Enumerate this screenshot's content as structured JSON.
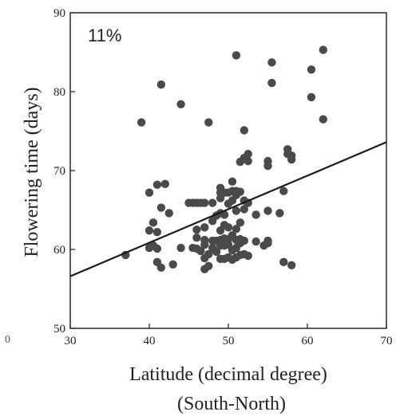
{
  "chart_data": {
    "type": "scatter",
    "annotation": "11%",
    "xlabel": "Latitude (decimal degree)",
    "xlabel2": "(South-North)",
    "ylabel": "Flowering time (days)",
    "xlim": [
      30,
      70
    ],
    "ylim": [
      50,
      90
    ],
    "xticks": [
      30,
      40,
      50,
      60,
      70
    ],
    "yticks": [
      50,
      60,
      70,
      80,
      90
    ],
    "stray_tick": "0",
    "grid": false,
    "trend_line": {
      "x": [
        30,
        70
      ],
      "y": [
        56.6,
        73.6
      ]
    },
    "points": [
      [
        37,
        59.3
      ],
      [
        39,
        76.1
      ],
      [
        40,
        60.2
      ],
      [
        40,
        62.4
      ],
      [
        40,
        67.2
      ],
      [
        40.5,
        60.5
      ],
      [
        40.5,
        63.4
      ],
      [
        41,
        58.4
      ],
      [
        41,
        60.1
      ],
      [
        41,
        62.2
      ],
      [
        41,
        68.2
      ],
      [
        41.5,
        57.7
      ],
      [
        41.5,
        65.3
      ],
      [
        41.5,
        80.9
      ],
      [
        42,
        68.3
      ],
      [
        42.5,
        64.6
      ],
      [
        43,
        58.1
      ],
      [
        44,
        60.2
      ],
      [
        44,
        78.4
      ],
      [
        45,
        65.9
      ],
      [
        45.5,
        60.2
      ],
      [
        45.5,
        65.9
      ],
      [
        46,
        60.1
      ],
      [
        46,
        61.5
      ],
      [
        46,
        62.5
      ],
      [
        46,
        65.9
      ],
      [
        46.5,
        59.8
      ],
      [
        46.5,
        65.9
      ],
      [
        47,
        57.5
      ],
      [
        47,
        58.9
      ],
      [
        47,
        60.6
      ],
      [
        47,
        61.2
      ],
      [
        47,
        62.8
      ],
      [
        47,
        65.9
      ],
      [
        47.5,
        57.9
      ],
      [
        47.5,
        59.4
      ],
      [
        47.5,
        76.1
      ],
      [
        48,
        60.2
      ],
      [
        48,
        61.1
      ],
      [
        48,
        63.6
      ],
      [
        48,
        65.9
      ],
      [
        48.5,
        59.7
      ],
      [
        48.5,
        61.1
      ],
      [
        48.5,
        64.3
      ],
      [
        49,
        58.8
      ],
      [
        49,
        60.5
      ],
      [
        49,
        61.2
      ],
      [
        49,
        62.4
      ],
      [
        49,
        64.6
      ],
      [
        49,
        66.5
      ],
      [
        49,
        67.2
      ],
      [
        49,
        67.8
      ],
      [
        49.5,
        58.8
      ],
      [
        49.5,
        60.5
      ],
      [
        49.5,
        61.1
      ],
      [
        49.5,
        61.4
      ],
      [
        49.5,
        63.1
      ],
      [
        49.5,
        64.4
      ],
      [
        49.5,
        67.2
      ],
      [
        50,
        59.0
      ],
      [
        50,
        60.6
      ],
      [
        50,
        61.3
      ],
      [
        50,
        62.8
      ],
      [
        50,
        65.8
      ],
      [
        50,
        67.2
      ],
      [
        50.5,
        58.7
      ],
      [
        50.5,
        59.9
      ],
      [
        50.5,
        61.8
      ],
      [
        50.5,
        66.2
      ],
      [
        50.5,
        67.4
      ],
      [
        50.5,
        68.6
      ],
      [
        51,
        59.0
      ],
      [
        51,
        60.2
      ],
      [
        51,
        61.2
      ],
      [
        51,
        62.6
      ],
      [
        51,
        64.9
      ],
      [
        51,
        66.9
      ],
      [
        51,
        67.4
      ],
      [
        51,
        84.6
      ],
      [
        51.5,
        59.3
      ],
      [
        51.5,
        60.8
      ],
      [
        51.5,
        61.3
      ],
      [
        51.5,
        63.4
      ],
      [
        51.5,
        67.3
      ],
      [
        51.5,
        71.1
      ],
      [
        52,
        59.4
      ],
      [
        52,
        61.1
      ],
      [
        52,
        65.1
      ],
      [
        52,
        66.2
      ],
      [
        52,
        71.6
      ],
      [
        52,
        75.1
      ],
      [
        52.5,
        59.2
      ],
      [
        52.5,
        65.9
      ],
      [
        52.5,
        71.2
      ],
      [
        52.5,
        72.1
      ],
      [
        53.5,
        61.0
      ],
      [
        53.5,
        64.4
      ],
      [
        54.5,
        60.5
      ],
      [
        55,
        60.8
      ],
      [
        55,
        61.1
      ],
      [
        55,
        64.9
      ],
      [
        55,
        70.6
      ],
      [
        55,
        71.2
      ],
      [
        55.5,
        81.1
      ],
      [
        55.5,
        83.7
      ],
      [
        56.5,
        64.6
      ],
      [
        57,
        58.4
      ],
      [
        57,
        67.4
      ],
      [
        57.5,
        72.1
      ],
      [
        57.5,
        72.7
      ],
      [
        58,
        58.0
      ],
      [
        58,
        71.4
      ],
      [
        58,
        71.9
      ],
      [
        60.5,
        79.3
      ],
      [
        60.5,
        82.8
      ],
      [
        62,
        76.5
      ],
      [
        62,
        85.3
      ]
    ]
  }
}
